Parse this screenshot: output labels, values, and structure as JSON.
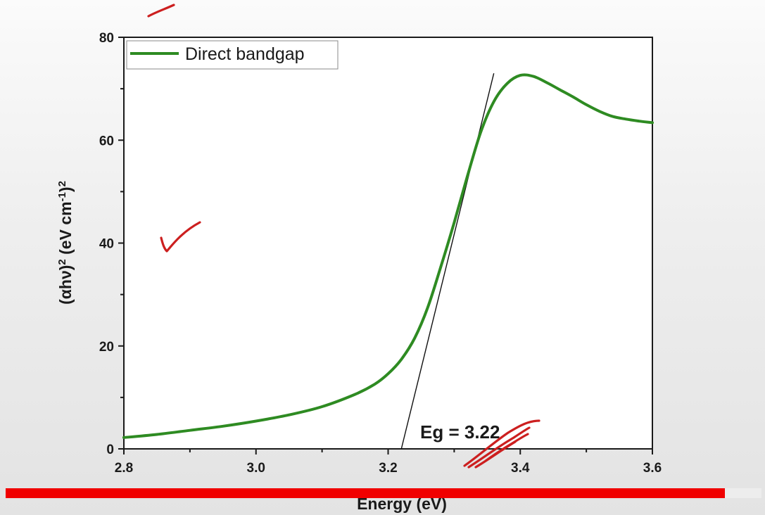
{
  "chart_data": {
    "type": "line",
    "title": "",
    "xlabel": "Energy (eV)",
    "ylabel_parts": [
      "(",
      "αhν",
      ")",
      "2",
      " (eV cm",
      "-1",
      ")",
      "2"
    ],
    "xlim": [
      2.8,
      3.6
    ],
    "ylim": [
      0,
      80
    ],
    "x_ticks": [
      "2.8",
      "3.0",
      "3.2",
      "3.4",
      "3.6"
    ],
    "y_ticks": [
      "0",
      "20",
      "40",
      "60",
      "80"
    ],
    "grid": false,
    "legend": {
      "position": "top-left",
      "entries": [
        "Direct bandgap"
      ]
    },
    "series": [
      {
        "name": "Direct bandgap",
        "color": "#2e8b22",
        "x": [
          2.8,
          2.85,
          2.9,
          2.95,
          3.0,
          3.05,
          3.1,
          3.15,
          3.18,
          3.2,
          3.22,
          3.24,
          3.26,
          3.28,
          3.3,
          3.32,
          3.34,
          3.36,
          3.38,
          3.4,
          3.42,
          3.44,
          3.46,
          3.48,
          3.5,
          3.52,
          3.54,
          3.56,
          3.58,
          3.6
        ],
        "y": [
          2.2,
          2.8,
          3.6,
          4.4,
          5.4,
          6.6,
          8.2,
          10.6,
          12.6,
          14.6,
          17.4,
          21.5,
          27.5,
          35.5,
          44.0,
          53.0,
          61.5,
          67.5,
          71.0,
          72.6,
          72.4,
          71.2,
          69.8,
          68.4,
          66.9,
          65.6,
          64.6,
          64.1,
          63.7,
          63.4
        ]
      }
    ],
    "tangent_line": {
      "x": [
        3.22,
        3.36
      ],
      "y": [
        0,
        73
      ]
    },
    "annotations": [
      "Eg = 3.22"
    ]
  },
  "colors": {
    "annotation_ink": "#cc1f1f",
    "progress": "#f00000",
    "axis": "#1a1a1a"
  },
  "video_progress": 0.952
}
